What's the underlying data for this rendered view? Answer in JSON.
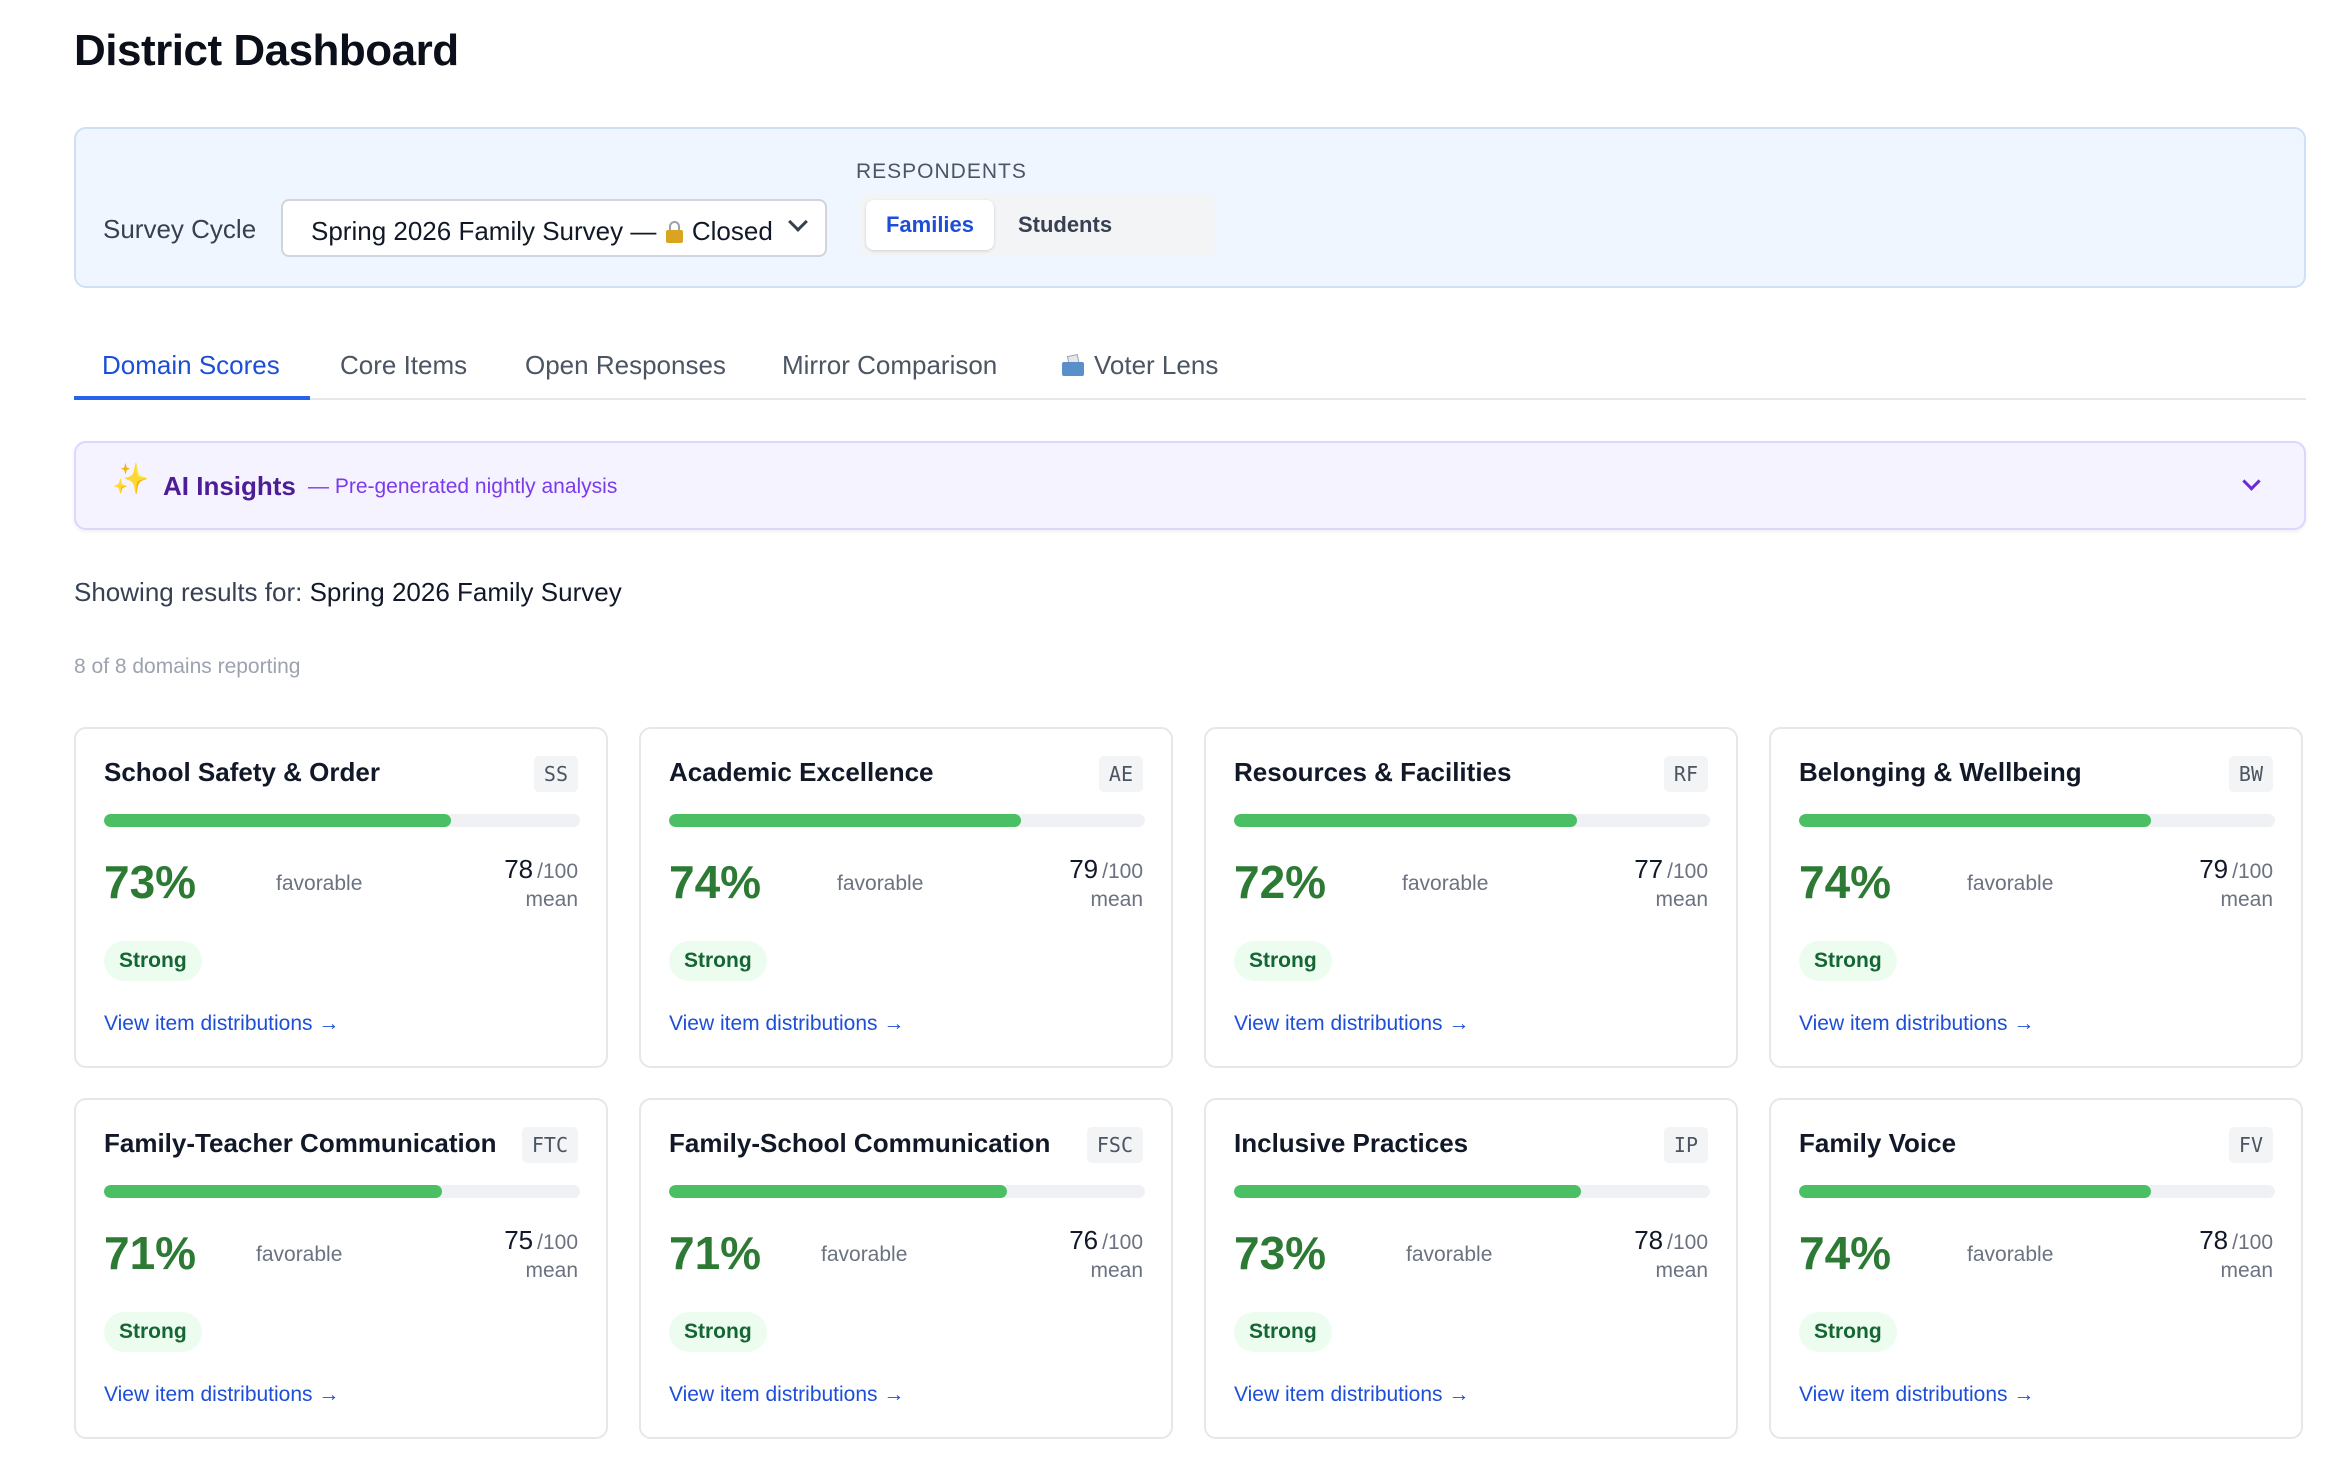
{
  "page_title": "District Dashboard",
  "filters": {
    "cycle_label": "Survey Cycle",
    "cycle_value_prefix": "Spring 2026 Family Survey —",
    "cycle_value_suffix": "Closed",
    "respondents_label": "RESPONDENTS",
    "respondent_options": [
      "Families",
      "Students"
    ],
    "respondent_selected": "Families"
  },
  "tabs": [
    {
      "label": "Domain Scores",
      "active": true
    },
    {
      "label": "Core Items",
      "active": false
    },
    {
      "label": "Open Responses",
      "active": false
    },
    {
      "label": "Mirror Comparison",
      "active": false
    },
    {
      "label": "Voter Lens",
      "active": false,
      "icon": "ballot-box-icon"
    }
  ],
  "ai_insights": {
    "title": "AI Insights",
    "subtitle": "— Pre-generated nightly analysis",
    "icon": "sparkles-icon",
    "expanded": false
  },
  "showing": {
    "prefix": "Showing results for:",
    "survey": "Spring 2026 Family Survey"
  },
  "reporting_text": "8 of 8 domains reporting",
  "card_labels": {
    "favorable": "favorable",
    "denominator": "/100",
    "mean": "mean",
    "link": "View item distributions →"
  },
  "colors": {
    "accent_blue": "#1d4ed8",
    "bar_green": "#4bbf63",
    "percent_green": "#2d7a34",
    "ai_purple": "#7c3aed"
  },
  "domains": [
    {
      "name": "School Safety & Order",
      "code": "SS",
      "favorable_pct": "73%",
      "favorable_value": 73,
      "mean": "78",
      "badge": "Strong"
    },
    {
      "name": "Academic Excellence",
      "code": "AE",
      "favorable_pct": "74%",
      "favorable_value": 74,
      "mean": "79",
      "badge": "Strong"
    },
    {
      "name": "Resources & Facilities",
      "code": "RF",
      "favorable_pct": "72%",
      "favorable_value": 72,
      "mean": "77",
      "badge": "Strong"
    },
    {
      "name": "Belonging & Wellbeing",
      "code": "BW",
      "favorable_pct": "74%",
      "favorable_value": 74,
      "mean": "79",
      "badge": "Strong"
    },
    {
      "name": "Family-Teacher Communication",
      "code": "FTC",
      "favorable_pct": "71%",
      "favorable_value": 71,
      "mean": "75",
      "badge": "Strong"
    },
    {
      "name": "Family-School Communication",
      "code": "FSC",
      "favorable_pct": "71%",
      "favorable_value": 71,
      "mean": "76",
      "badge": "Strong"
    },
    {
      "name": "Inclusive Practices",
      "code": "IP",
      "favorable_pct": "73%",
      "favorable_value": 73,
      "mean": "78",
      "badge": "Strong"
    },
    {
      "name": "Family Voice",
      "code": "FV",
      "favorable_pct": "74%",
      "favorable_value": 74,
      "mean": "78",
      "badge": "Strong"
    }
  ]
}
